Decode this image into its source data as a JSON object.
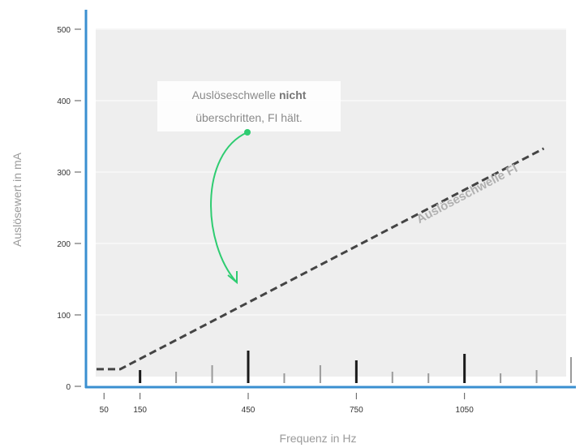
{
  "chart_data": {
    "type": "line",
    "xlabel": "Frequenz in Hz",
    "ylabel": "Auslösewert in mA",
    "xlim": [
      0,
      1350
    ],
    "ylim": [
      0,
      510
    ],
    "x_ticks": [
      "50",
      "150",
      "450",
      "750",
      "1050"
    ],
    "x_tick_values": [
      50,
      150,
      450,
      750,
      1050
    ],
    "y_ticks": [
      "0",
      "100",
      "200",
      "300",
      "400",
      "500"
    ],
    "y_tick_values": [
      0,
      100,
      200,
      300,
      400,
      500
    ],
    "grid": true,
    "series": [
      {
        "name": "Auslöseschwelle FI",
        "style": "dashed",
        "color": "#444444",
        "x": [
          0,
          95,
          1270
        ],
        "y": [
          24,
          24,
          333
        ]
      }
    ],
    "harmonic_bars": {
      "color_strong": "#1a1a1a",
      "color_weak": "#9a9a9a",
      "x": [
        150,
        250,
        350,
        450,
        550,
        650,
        750,
        850,
        950,
        1050,
        1150,
        1250,
        1350
      ],
      "heights": [
        16,
        14,
        22,
        40,
        12,
        22,
        28,
        14,
        12,
        36,
        12,
        16,
        32
      ],
      "strong": [
        true,
        false,
        false,
        true,
        false,
        false,
        true,
        false,
        false,
        true,
        false,
        false,
        false
      ]
    },
    "annotation": {
      "line1_normal": "Auslöseschwelle ",
      "line1_bold": "nicht",
      "line2": "überschritten, FI hält.",
      "arrow_color": "#2ecc71"
    },
    "colors": {
      "axis": "#3a8fd0",
      "plot_bg": "#eeeeee"
    }
  }
}
